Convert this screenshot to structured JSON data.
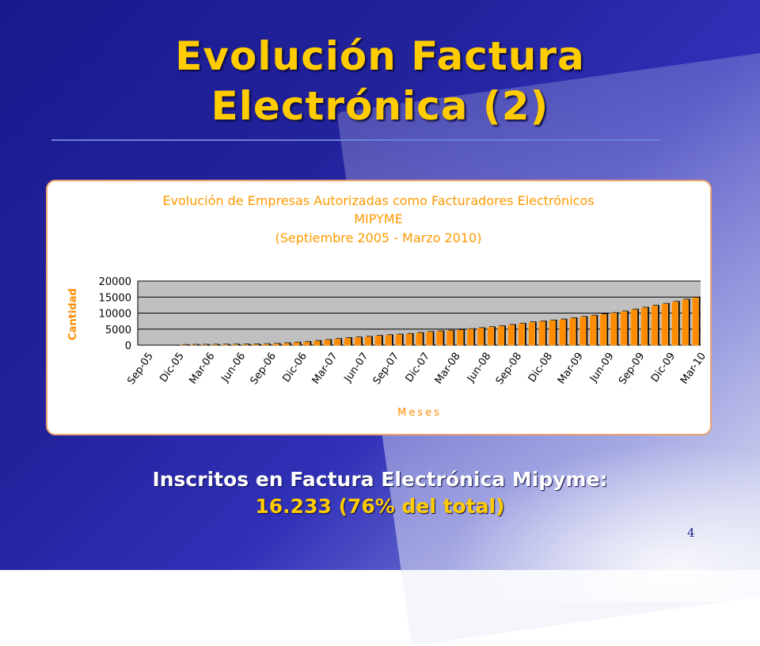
{
  "slide": {
    "title_line1": "Evolución Factura",
    "title_line2": "Electrónica (2)",
    "caption_line1": "Inscritos en Factura Electrónica Mipyme:",
    "caption_line2": "16.233 (76% del total)",
    "page_number": "4"
  },
  "colors": {
    "title": "#ffcc00",
    "chart_title": "#ff9900",
    "bar": "#ff8c00",
    "plot_bg": "#c0c0c0",
    "background": "#1a1a8e"
  },
  "chart_data": {
    "type": "bar",
    "title": "Evolución de Empresas Autorizadas como Facturadores Electrónicos",
    "subtitle1": "MIPYME",
    "subtitle2": "(Septiembre 2005 - Marzo 2010)",
    "xlabel": "Meses",
    "ylabel": "Cantidad",
    "ylim": [
      0,
      20000
    ],
    "yticks": [
      "20000",
      "15000",
      "10000",
      "5000",
      "0"
    ],
    "x_tick_labels": [
      "Sep-05",
      "Dic-05",
      "Mar-06",
      "Jun-06",
      "Sep-06",
      "Dic-06",
      "Mar-07",
      "Jun-07",
      "Sep-07",
      "Dic-07",
      "Mar-08",
      "Jun-08",
      "Sep-08",
      "Dic-08",
      "Mar-09",
      "Jun-09",
      "Sep-09",
      "Dic-09",
      "Mar-10"
    ],
    "grid": true,
    "categories": [
      "Sep-05",
      "Oct-05",
      "Nov-05",
      "Dic-05",
      "Ene-06",
      "Feb-06",
      "Mar-06",
      "Abr-06",
      "May-06",
      "Jun-06",
      "Jul-06",
      "Ago-06",
      "Sep-06",
      "Oct-06",
      "Nov-06",
      "Dic-06",
      "Ene-07",
      "Feb-07",
      "Mar-07",
      "Abr-07",
      "May-07",
      "Jun-07",
      "Jul-07",
      "Ago-07",
      "Sep-07",
      "Oct-07",
      "Nov-07",
      "Dic-07",
      "Ene-08",
      "Feb-08",
      "Mar-08",
      "Abr-08",
      "May-08",
      "Jun-08",
      "Jul-08",
      "Ago-08",
      "Sep-08",
      "Oct-08",
      "Nov-08",
      "Dic-08",
      "Ene-09",
      "Feb-09",
      "Mar-09",
      "Abr-09",
      "May-09",
      "Jun-09",
      "Jul-09",
      "Ago-09",
      "Sep-09",
      "Oct-09",
      "Nov-09",
      "Dic-09",
      "Ene-10",
      "Feb-10",
      "Mar-10"
    ],
    "values": [
      0,
      0,
      0,
      0,
      50,
      80,
      100,
      120,
      150,
      180,
      200,
      250,
      300,
      400,
      600,
      800,
      1000,
      1300,
      1600,
      1900,
      2200,
      2400,
      2600,
      2900,
      3100,
      3300,
      3500,
      3800,
      4100,
      4300,
      4500,
      4700,
      5000,
      5300,
      5600,
      5900,
      6300,
      6700,
      7100,
      7400,
      7700,
      8000,
      8400,
      8800,
      9200,
      9600,
      10000,
      10500,
      11100,
      11700,
      12300,
      12900,
      13500,
      14200,
      14800
    ]
  }
}
